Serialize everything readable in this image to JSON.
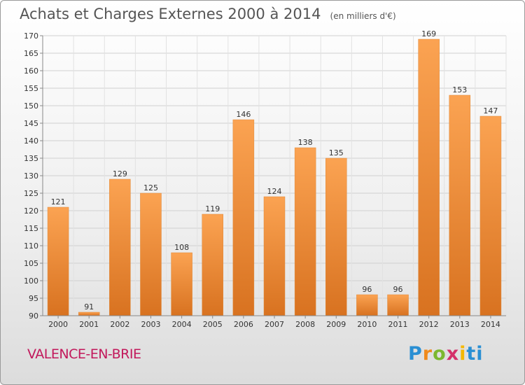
{
  "title": "Achats et Charges Externes 2000 à 2014",
  "unit_note": "(en milliers d'€)",
  "commune": "VALENCE-EN-BRIE",
  "brand": [
    "P",
    "r",
    "o",
    "x",
    "i",
    "ti"
  ],
  "colors": {
    "bar_light": "#fba352",
    "bar_dark": "#d87220",
    "commune": "#c2185b"
  },
  "chart_data": {
    "type": "bar",
    "categories": [
      "2000",
      "2001",
      "2002",
      "2003",
      "2004",
      "2005",
      "2006",
      "2007",
      "2008",
      "2009",
      "2010",
      "2011",
      "2012",
      "2013",
      "2014"
    ],
    "values": [
      121,
      91,
      129,
      125,
      108,
      119,
      146,
      124,
      138,
      135,
      96,
      96,
      169,
      153,
      147
    ],
    "ylim": [
      90,
      170
    ],
    "yticks": [
      90,
      95,
      100,
      105,
      110,
      115,
      120,
      125,
      130,
      135,
      140,
      145,
      150,
      155,
      160,
      165,
      170
    ],
    "grid": true,
    "data_labels": true
  }
}
